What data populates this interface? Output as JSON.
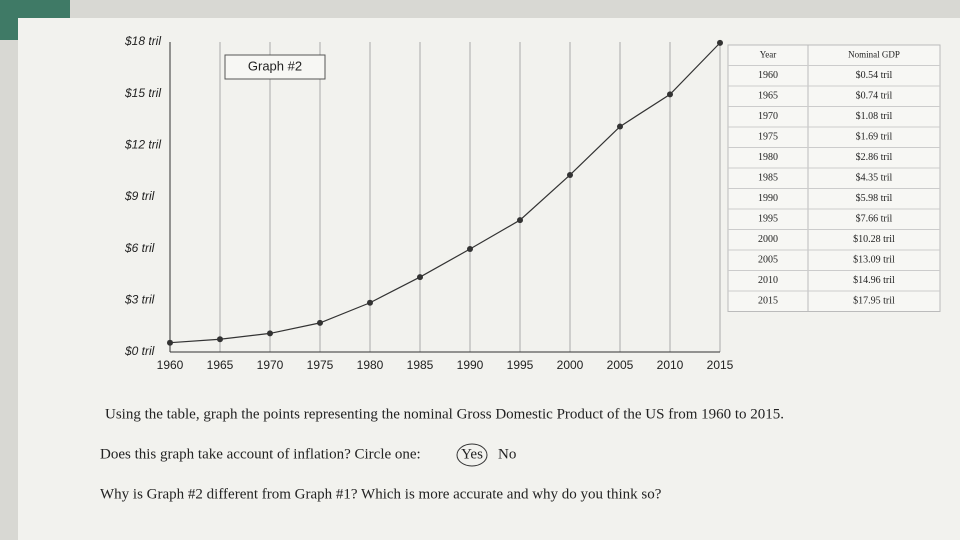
{
  "chart_data": {
    "type": "line",
    "title": "Graph #2",
    "x": [
      1960,
      1965,
      1970,
      1975,
      1980,
      1985,
      1990,
      1995,
      2000,
      2005,
      2010,
      2015
    ],
    "values": [
      0.54,
      0.74,
      1.08,
      1.69,
      2.86,
      4.35,
      5.98,
      7.66,
      10.28,
      13.09,
      14.96,
      17.95
    ],
    "color": "#333333",
    "xlim": [
      1960,
      2015
    ],
    "xticks": [
      1960,
      1965,
      1970,
      1975,
      1980,
      1985,
      1990,
      1995,
      2000,
      2005,
      2010,
      2015
    ],
    "ylim": [
      0,
      18
    ],
    "yticks": [
      {
        "value": 0,
        "label": "$0 tril"
      },
      {
        "value": 3,
        "label": "$3 tril"
      },
      {
        "value": 6,
        "label": "$6 tril"
      },
      {
        "value": 9,
        "label": "$9 tril"
      },
      {
        "value": 12,
        "label": "$12 tril"
      },
      {
        "value": 15,
        "label": "$15 tril"
      },
      {
        "value": 18,
        "label": "$18 tril"
      }
    ],
    "grid": true
  },
  "table": {
    "header": [
      "Year",
      "Nominal GDP"
    ],
    "rows": [
      [
        "1960",
        "$0.54 tril"
      ],
      [
        "1965",
        "$0.74 tril"
      ],
      [
        "1970",
        "$1.08 tril"
      ],
      [
        "1975",
        "$1.69 tril"
      ],
      [
        "1980",
        "$2.86 tril"
      ],
      [
        "1985",
        "$4.35 tril"
      ],
      [
        "1990",
        "$5.98 tril"
      ],
      [
        "1995",
        "$7.66 tril"
      ],
      [
        "2000",
        "$10.28 tril"
      ],
      [
        "2005",
        "$13.09 tril"
      ],
      [
        "2010",
        "$14.96 tril"
      ],
      [
        "2015",
        "$17.95 tril"
      ]
    ]
  },
  "questions": {
    "q1": "Using the table, graph the points representing the nominal Gross Domestic Product of the US from 1960 to 2015.",
    "q2": "Does this graph take account of inflation? Circle one:",
    "q2_yes": "Yes",
    "q2_no": "No",
    "q3": "Why is Graph #2 different from Graph #1? Which is more accurate and why do you think so?"
  }
}
